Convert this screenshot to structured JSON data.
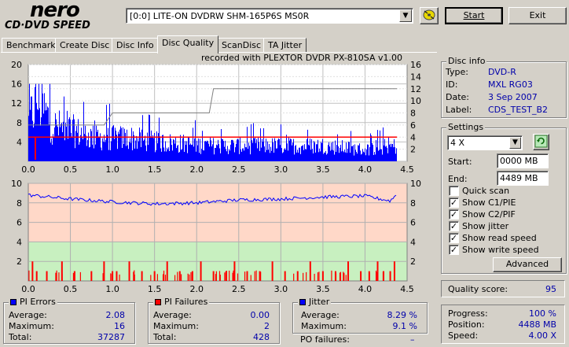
{
  "logo": {
    "brand": "nero",
    "product": "CD·DVD SPEED"
  },
  "drive": {
    "selected": "[0:0]   LITE-ON DVDRW SHM-165P6S MS0R"
  },
  "toolbar": {
    "start_label": "Start",
    "exit_label": "Exit"
  },
  "tabs": [
    {
      "label": "Benchmark"
    },
    {
      "label": "Create Disc"
    },
    {
      "label": "Disc Info"
    },
    {
      "label": "Disc Quality",
      "active": true
    },
    {
      "label": "ScanDisc"
    },
    {
      "label": "TA Jitter"
    }
  ],
  "recorded_with": "recorded with PLEXTOR DVDR   PX-810SA  v1.00",
  "chart_data": [
    {
      "type": "bar",
      "series": [
        {
          "name": "PI Errors",
          "color": "#0000ff"
        },
        {
          "name": "Read speed",
          "color": "#ff0000"
        },
        {
          "name": "Write speed",
          "color": "#808080"
        }
      ],
      "x_ticks": [
        "0.0",
        "0.5",
        "1.0",
        "1.5",
        "2.0",
        "2.5",
        "3.0",
        "3.5",
        "4.0",
        "4.5"
      ],
      "y_ticks_left": [
        "20",
        "16",
        "12",
        "8",
        "4"
      ],
      "y_ticks_right": [
        "16",
        "14",
        "12",
        "10",
        "8",
        "6",
        "4",
        "2"
      ],
      "xlim": [
        0,
        4.5
      ],
      "ylim_left": [
        0,
        20
      ],
      "ylim_right": [
        0,
        16
      ],
      "grid": true,
      "pi_profile": [
        {
          "x": 0.0,
          "y": 10
        },
        {
          "x": 0.1,
          "y": 16
        },
        {
          "x": 0.3,
          "y": 9
        },
        {
          "x": 0.5,
          "y": 8
        },
        {
          "x": 0.8,
          "y": 6
        },
        {
          "x": 1.2,
          "y": 6
        },
        {
          "x": 1.5,
          "y": 5
        },
        {
          "x": 2.2,
          "y": 4
        },
        {
          "x": 3.5,
          "y": 4
        },
        {
          "x": 4.0,
          "y": 3
        },
        {
          "x": 4.38,
          "y": 4
        }
      ],
      "read_speed": [
        {
          "x": 0.0,
          "y": 4.0
        },
        {
          "x": 4.38,
          "y": 4.0
        }
      ],
      "write_speed": [
        {
          "x": 0.0,
          "y": 6.0
        },
        {
          "x": 0.9,
          "y": 6.0
        },
        {
          "x": 1.0,
          "y": 8.0
        },
        {
          "x": 2.15,
          "y": 8.0
        },
        {
          "x": 2.2,
          "y": 12.0
        },
        {
          "x": 4.38,
          "y": 12.0
        }
      ]
    },
    {
      "type": "bar",
      "series": [
        {
          "name": "PI Failures",
          "color": "#ff0000"
        },
        {
          "name": "Jitter",
          "color": "#0000ff"
        }
      ],
      "x_ticks": [
        "0.0",
        "0.5",
        "1.0",
        "1.5",
        "2.0",
        "2.5",
        "3.0",
        "3.5",
        "4.0",
        "4.5"
      ],
      "y_ticks_left": [
        "10",
        "8",
        "6",
        "4",
        "2"
      ],
      "y_ticks_right": [
        "10",
        "8",
        "6",
        "4",
        "2"
      ],
      "xlim": [
        0,
        4.5
      ],
      "ylim": [
        0,
        10
      ],
      "grid": true,
      "jitter": [
        {
          "x": 0.0,
          "y": 8.8
        },
        {
          "x": 0.5,
          "y": 8.4
        },
        {
          "x": 1.0,
          "y": 8.1
        },
        {
          "x": 1.5,
          "y": 7.9
        },
        {
          "x": 2.0,
          "y": 8.0
        },
        {
          "x": 2.5,
          "y": 8.3
        },
        {
          "x": 3.0,
          "y": 8.4
        },
        {
          "x": 3.5,
          "y": 8.6
        },
        {
          "x": 4.0,
          "y": 8.7
        },
        {
          "x": 4.3,
          "y": 8.2
        },
        {
          "x": 4.38,
          "y": 8.9
        }
      ],
      "pif_positions": [
        0.05,
        0.1,
        0.22,
        0.4,
        0.55,
        0.75,
        0.9,
        1.0,
        1.05,
        1.2,
        1.35,
        1.5,
        1.65,
        1.8,
        1.95,
        2.05,
        2.2,
        2.35,
        2.45,
        2.6,
        2.75,
        2.9,
        3.05,
        3.2,
        3.35,
        3.5,
        3.65,
        3.8,
        3.95,
        4.05,
        4.15,
        4.22,
        4.3,
        4.35
      ]
    }
  ],
  "disc_info": {
    "title": "Disc info",
    "rows": [
      {
        "label": "Type:",
        "value": "DVD-R"
      },
      {
        "label": "ID:",
        "value": "MXL RG03"
      },
      {
        "label": "Date:",
        "value": "3 Sep 2007"
      },
      {
        "label": "Label:",
        "value": "CDS_TEST_B2"
      }
    ]
  },
  "settings": {
    "title": "Settings",
    "speed": "4 X",
    "start_label": "Start:",
    "start_value": "0000 MB",
    "end_label": "End:",
    "end_value": "4489 MB",
    "checks": [
      {
        "label": "Quick scan",
        "checked": false
      },
      {
        "label": "Show C1/PIE",
        "checked": true
      },
      {
        "label": "Show C2/PIF",
        "checked": true
      },
      {
        "label": "Show jitter",
        "checked": true
      },
      {
        "label": "Show read speed",
        "checked": true
      },
      {
        "label": "Show write speed",
        "checked": true
      }
    ],
    "advanced_label": "Advanced",
    "check_mark": "✓"
  },
  "quality": {
    "label": "Quality score:",
    "value": "95"
  },
  "progress": {
    "rows": [
      {
        "label": "Progress:",
        "value": "100 %"
      },
      {
        "label": "Position:",
        "value": "4488 MB"
      },
      {
        "label": "Speed:",
        "value": "4.00 X"
      }
    ]
  },
  "stats": {
    "pi_errors": {
      "title": "PI Errors",
      "color": "#0000ff",
      "rows": [
        {
          "label": "Average:",
          "value": "2.08"
        },
        {
          "label": "Maximum:",
          "value": "16"
        },
        {
          "label": "Total:",
          "value": "37287"
        }
      ]
    },
    "pi_failures": {
      "title": "PI Failures",
      "color": "#ff0000",
      "rows": [
        {
          "label": "Average:",
          "value": "0.00"
        },
        {
          "label": "Maximum:",
          "value": "2"
        },
        {
          "label": "Total:",
          "value": "428"
        }
      ]
    },
    "jitter": {
      "title": "Jitter",
      "color": "#0000ff",
      "rows": [
        {
          "label": "Average:",
          "value": "8.29 %"
        },
        {
          "label": "Maximum:",
          "value": "9.1 %"
        }
      ],
      "po_label": "PO failures:",
      "po_value": "–"
    }
  }
}
